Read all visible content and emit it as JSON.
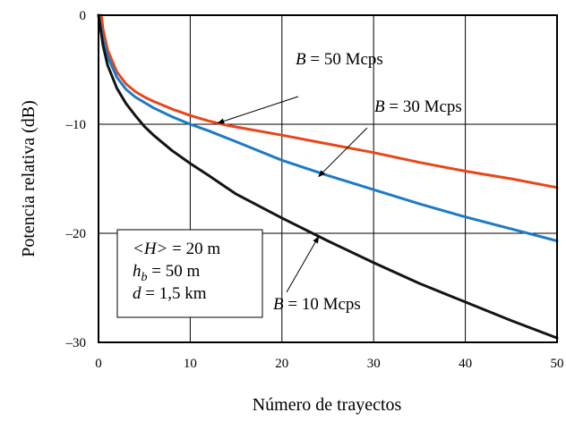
{
  "chart_data": {
    "type": "line",
    "xlabel": "Número de trayectos",
    "ylabel": "Potencia relativa (dB)",
    "xlim": [
      0,
      50
    ],
    "ylim": [
      -30,
      0
    ],
    "xticks": [
      0,
      10,
      20,
      30,
      40,
      50
    ],
    "yticks": [
      0,
      -10,
      -20,
      -30
    ],
    "xtick_labels": [
      "0",
      "10",
      "20",
      "30",
      "40",
      "50"
    ],
    "ytick_labels": [
      "0",
      "–10",
      "–20",
      "–30"
    ],
    "grid": true,
    "series": [
      {
        "name": "B = 50 Mcps",
        "color": "#e8461a",
        "x": [
          0.3,
          0.5,
          1,
          2,
          3,
          4,
          5,
          6,
          8,
          10,
          12,
          14,
          16,
          20,
          25,
          30,
          35,
          40,
          45,
          50
        ],
        "y": [
          0,
          -1.3,
          -3.2,
          -5.2,
          -6.3,
          -7.0,
          -7.5,
          -7.9,
          -8.6,
          -9.2,
          -9.7,
          -10.1,
          -10.4,
          -11.0,
          -11.8,
          -12.6,
          -13.5,
          -14.3,
          -15.0,
          -15.8
        ]
      },
      {
        "name": "B = 30 Mcps",
        "color": "#1f7ac4",
        "x": [
          0,
          0.5,
          1,
          2,
          3,
          4,
          5,
          6,
          8,
          10,
          12,
          15,
          20,
          25,
          30,
          35,
          40,
          45,
          50
        ],
        "y": [
          0,
          -2.2,
          -3.8,
          -5.7,
          -6.8,
          -7.5,
          -8.0,
          -8.5,
          -9.3,
          -10.0,
          -10.6,
          -11.6,
          -13.3,
          -14.7,
          -16.0,
          -17.3,
          -18.5,
          -19.6,
          -20.7
        ]
      },
      {
        "name": "B = 10 Mcps",
        "color": "#141414",
        "x": [
          0,
          0.5,
          1,
          2,
          3,
          4,
          5,
          6,
          8,
          10,
          12,
          15,
          20,
          25,
          30,
          35,
          40,
          45,
          50
        ],
        "y": [
          0,
          -2.8,
          -4.6,
          -6.7,
          -8.1,
          -9.2,
          -10.2,
          -11.0,
          -12.4,
          -13.6,
          -14.7,
          -16.4,
          -18.6,
          -20.7,
          -22.7,
          -24.6,
          -26.3,
          -28.0,
          -29.6
        ]
      }
    ],
    "annotations": [
      {
        "prefix": "B",
        "rest": " = 50 Mcps",
        "series": 0,
        "point": [
          13,
          -9.9
        ]
      },
      {
        "prefix": "B",
        "rest": " = 30 Mcps",
        "series": 1,
        "point": [
          24,
          -14.8
        ]
      },
      {
        "prefix": "B",
        "rest": " = 10 Mcps",
        "series": 2,
        "point": [
          24,
          -20.3
        ]
      }
    ],
    "params_box": {
      "line1": {
        "var": "<H>",
        "rest": " = 20 m"
      },
      "line2": {
        "var": "h",
        "sub": "b",
        "rest": " = 50 m"
      },
      "line3": {
        "var": "d",
        "rest": " = 1,5 km"
      }
    }
  }
}
